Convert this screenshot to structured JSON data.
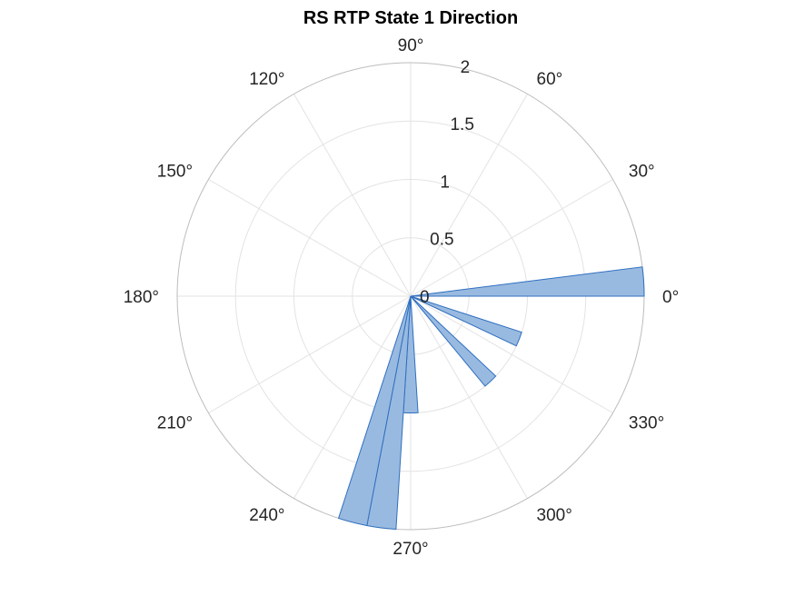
{
  "chart_data": {
    "type": "polar-histogram",
    "title": "RS  RTP State 1 Direction",
    "theta_ticks": [
      0,
      30,
      60,
      90,
      120,
      150,
      180,
      210,
      240,
      270,
      300,
      330
    ],
    "theta_tick_labels": [
      "0°",
      "30°",
      "60°",
      "90°",
      "120°",
      "150°",
      "180°",
      "210°",
      "240°",
      "270°",
      "300°",
      "330°"
    ],
    "r_ticks": [
      0,
      0.5,
      1,
      1.5,
      2
    ],
    "r_tick_labels": [
      "0",
      "0.5",
      "1",
      "1.5",
      "2"
    ],
    "rlim": [
      0,
      2
    ],
    "grid": true,
    "bins": [
      {
        "theta_start": 0,
        "theta_end": 7.2,
        "value": 2
      },
      {
        "theta_start": 334.8,
        "theta_end": 342,
        "value": 1
      },
      {
        "theta_start": 309.6,
        "theta_end": 316.8,
        "value": 1
      },
      {
        "theta_start": 266.4,
        "theta_end": 273.6,
        "value": 1
      },
      {
        "theta_start": 259.2,
        "theta_end": 266.4,
        "value": 2
      },
      {
        "theta_start": 252,
        "theta_end": 259.2,
        "value": 2
      }
    ],
    "colors": {
      "face": "#99bae0",
      "edge": "#2f6fc0"
    }
  }
}
